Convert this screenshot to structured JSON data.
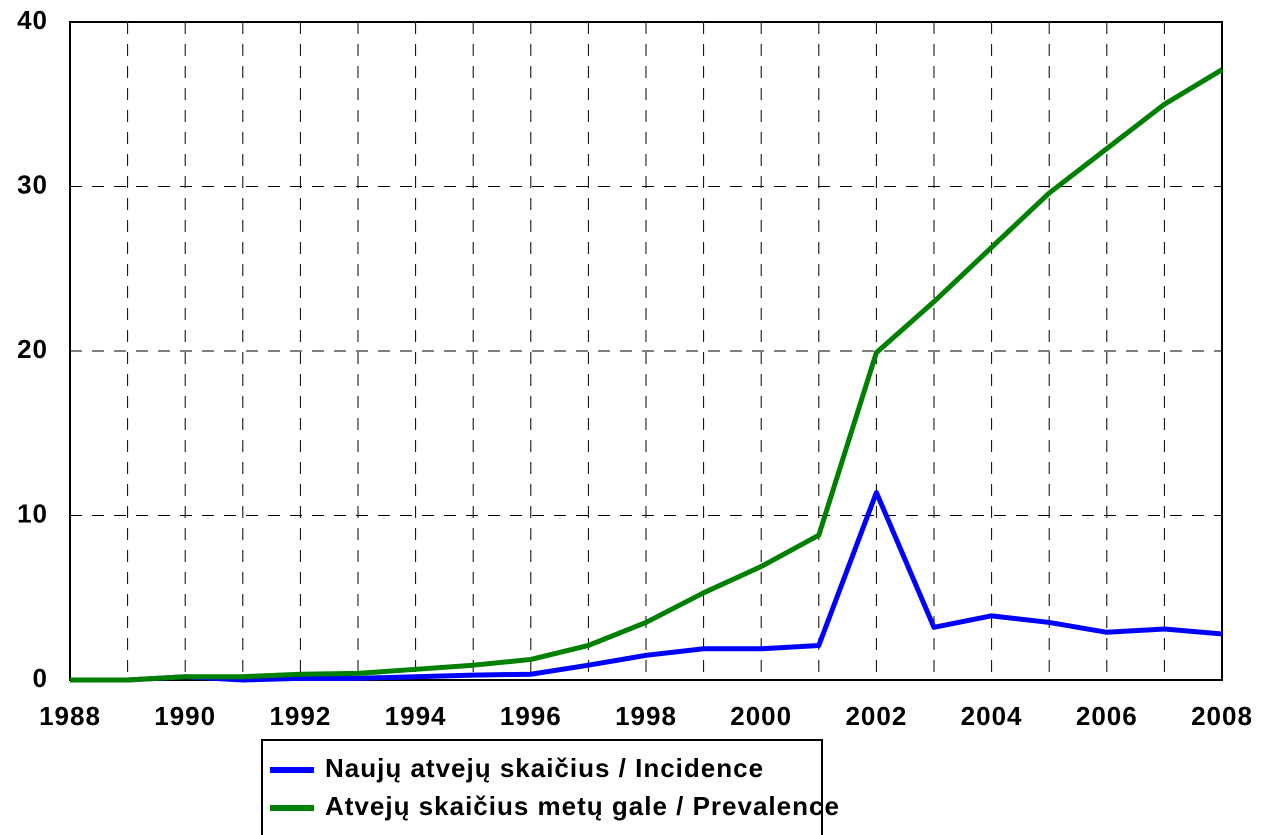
{
  "chart_data": {
    "type": "line",
    "x": [
      1988,
      1989,
      1990,
      1991,
      1992,
      1993,
      1994,
      1995,
      1996,
      1997,
      1998,
      1999,
      2000,
      2001,
      2002,
      2003,
      2004,
      2005,
      2006,
      2007,
      2008
    ],
    "series": [
      {
        "name": "Naujų atvejų skaičius / Incidence",
        "color": "#0000ff",
        "values": [
          0,
          0,
          0.2,
          0,
          0.1,
          0.1,
          0.2,
          0.3,
          0.35,
          0.9,
          1.5,
          1.9,
          1.9,
          2.1,
          11.4,
          3.2,
          3.9,
          3.5,
          2.9,
          3.1,
          2.8
        ]
      },
      {
        "name": "Atvejų skaičius metų gale / Prevalence",
        "color": "#008000",
        "values": [
          0,
          0,
          0.2,
          0.2,
          0.35,
          0.4,
          0.65,
          0.9,
          1.25,
          2.1,
          3.5,
          5.3,
          6.9,
          8.8,
          19.9,
          23,
          26.3,
          29.6,
          32.3,
          35,
          37.1
        ]
      }
    ],
    "xlim": [
      1988,
      2008
    ],
    "xticks": [
      1988,
      1990,
      1992,
      1994,
      1996,
      1998,
      2000,
      2002,
      2004,
      2006,
      2008
    ],
    "ylim": [
      0,
      40
    ],
    "yticks": [
      0,
      10,
      20,
      30,
      40
    ],
    "grid": true
  }
}
